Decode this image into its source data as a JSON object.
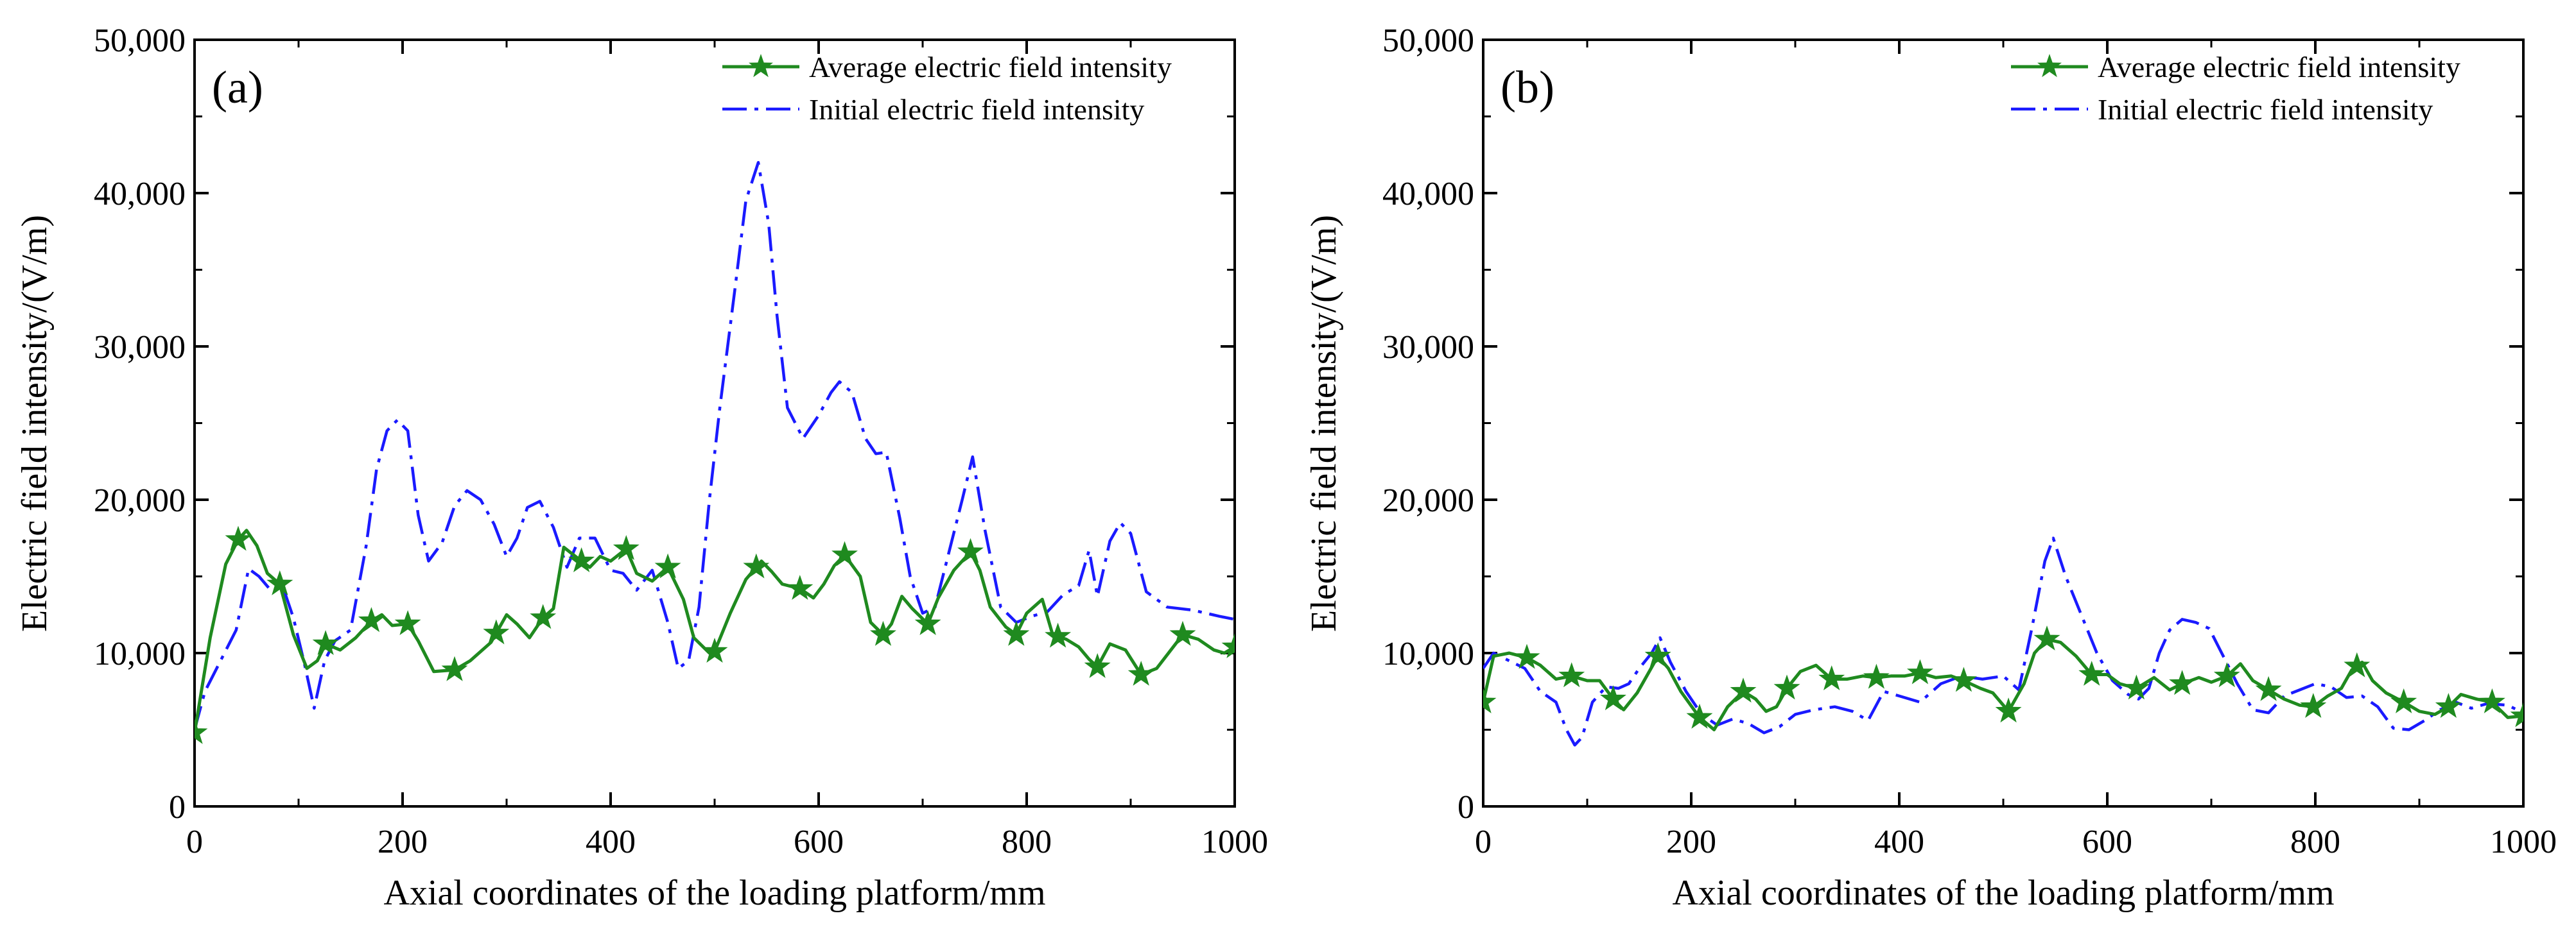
{
  "colors": {
    "average": "#1f8a1f",
    "initial": "#1a1aff",
    "axis": "#000000"
  },
  "chart_data": [
    {
      "type": "line",
      "panel_label": "(a)",
      "xlabel": "Axial coordinates of the loading platform/mm",
      "ylabel": "Electric field intensity/(V/m)",
      "xlim": [
        0,
        1000
      ],
      "ylim": [
        0,
        50000
      ],
      "x_ticks": [
        0,
        200,
        400,
        600,
        800,
        1000
      ],
      "x_tick_labels": [
        "0",
        "200",
        "400",
        "600",
        "800",
        "1000"
      ],
      "y_ticks": [
        0,
        10000,
        20000,
        30000,
        40000,
        50000
      ],
      "y_tick_labels": [
        "0",
        "10,000",
        "20,000",
        "30,000",
        "40,000",
        "50,000"
      ],
      "legend_position": "top-right",
      "series": [
        {
          "name": "Average electric field intensity",
          "style": "solid-star",
          "x": [
            0,
            15,
            30,
            42,
            50,
            60,
            70,
            82,
            95,
            108,
            118,
            126,
            140,
            155,
            170,
            180,
            190,
            205,
            215,
            230,
            250,
            265,
            285,
            300,
            310,
            322,
            335,
            345,
            355,
            372,
            380,
            390,
            400,
            415,
            425,
            440,
            455,
            470,
            480,
            495,
            500,
            515,
            530,
            545,
            555,
            565,
            582,
            595,
            605,
            615,
            625,
            640,
            650,
            662,
            670,
            680,
            690,
            705,
            715,
            730,
            746,
            755,
            765,
            780,
            790,
            800,
            815,
            825,
            838,
            850,
            860,
            868,
            880,
            895,
            910,
            925,
            950,
            965,
            980,
            990,
            1000
          ],
          "values": [
            4800,
            11000,
            15800,
            17400,
            18000,
            17000,
            15200,
            14500,
            11200,
            9000,
            9500,
            10600,
            10200,
            11000,
            12100,
            12500,
            11800,
            11900,
            10800,
            8800,
            8900,
            9500,
            10700,
            12500,
            11900,
            11000,
            12300,
            12900,
            16900,
            16000,
            15600,
            16300,
            16000,
            16800,
            15200,
            14700,
            15600,
            13500,
            11000,
            10000,
            10100,
            12600,
            14800,
            16000,
            15300,
            14500,
            14200,
            13600,
            14500,
            15700,
            16400,
            15000,
            12000,
            11200,
            11900,
            13700,
            12900,
            11900,
            13600,
            15400,
            16600,
            15400,
            13000,
            11700,
            11200,
            12600,
            13500,
            11200,
            10900,
            10400,
            9600,
            9100,
            10600,
            10200,
            8600,
            9000,
            11200,
            10900,
            10200,
            10000,
            10400
          ],
          "marker_x": [
            0,
            42,
            82,
            126,
            170,
            205,
            250,
            290,
            335,
            372,
            415,
            455,
            500,
            540,
            582,
            625,
            662,
            705,
            746,
            790,
            830,
            868,
            910,
            950,
            1000
          ]
        },
        {
          "name": "Initial electric field intensity",
          "style": "dash-dot",
          "x": [
            0,
            10,
            25,
            40,
            52,
            62,
            72,
            85,
            95,
            105,
            115,
            125,
            135,
            150,
            165,
            175,
            185,
            195,
            205,
            215,
            225,
            238,
            250,
            262,
            275,
            288,
            300,
            310,
            320,
            332,
            345,
            358,
            370,
            385,
            400,
            412,
            425,
            440,
            455,
            465,
            475,
            485,
            495,
            505,
            520,
            530,
            542,
            552,
            560,
            570,
            585,
            600,
            612,
            620,
            632,
            645,
            655,
            665,
            678,
            688,
            700,
            712,
            725,
            738,
            748,
            760,
            775,
            790,
            805,
            820,
            835,
            850,
            860,
            868,
            880,
            890,
            900,
            915,
            935,
            960,
            985,
            1000
          ],
          "values": [
            5000,
            7500,
            9500,
            11500,
            15500,
            15000,
            14200,
            14300,
            12300,
            9500,
            6400,
            9500,
            10800,
            11500,
            17000,
            22000,
            24500,
            25200,
            24500,
            19000,
            16000,
            17200,
            19600,
            20600,
            20000,
            18400,
            16300,
            17500,
            19500,
            19900,
            18200,
            15600,
            17500,
            17500,
            15400,
            15200,
            14100,
            15400,
            12000,
            9000,
            9500,
            13000,
            20000,
            26000,
            34000,
            39500,
            42000,
            38000,
            32000,
            26000,
            24000,
            25500,
            27000,
            27700,
            27000,
            24000,
            23000,
            23100,
            18800,
            15000,
            12600,
            13000,
            16500,
            20000,
            22800,
            18000,
            13000,
            12000,
            12400,
            12700,
            13800,
            14400,
            16700,
            13700,
            17300,
            18500,
            17800,
            14000,
            13000,
            12800,
            12400,
            12200
          ]
        }
      ]
    },
    {
      "type": "line",
      "panel_label": "(b)",
      "xlabel": "Axial coordinates of the loading platform/mm",
      "ylabel": "Electric field intensity/(V/m)",
      "xlim": [
        0,
        1000
      ],
      "ylim": [
        0,
        50000
      ],
      "x_ticks": [
        0,
        200,
        400,
        600,
        800,
        1000
      ],
      "x_tick_labels": [
        "0",
        "200",
        "400",
        "600",
        "800",
        "1000"
      ],
      "y_ticks": [
        0,
        10000,
        20000,
        30000,
        40000,
        50000
      ],
      "y_tick_labels": [
        "0",
        "10,000",
        "20,000",
        "30,000",
        "40,000",
        "50,000"
      ],
      "legend_position": "top-right",
      "series": [
        {
          "name": "Average electric field intensity",
          "style": "solid-star",
          "x": [
            0,
            10,
            25,
            42,
            55,
            70,
            85,
            100,
            112,
            125,
            135,
            148,
            158,
            168,
            178,
            190,
            208,
            222,
            235,
            250,
            262,
            272,
            282,
            292,
            305,
            320,
            335,
            350,
            365,
            378,
            392,
            405,
            420,
            435,
            450,
            462,
            478,
            490,
            505,
            520,
            530,
            542,
            555,
            570,
            585,
            600,
            612,
            628,
            645,
            660,
            672,
            688,
            700,
            715,
            728,
            740,
            755,
            770,
            785,
            798,
            812,
            825,
            835,
            845,
            855,
            868,
            885,
            900,
            915,
            928,
            940,
            955,
            970,
            985,
            1000
          ],
          "values": [
            6800,
            9800,
            10000,
            9700,
            9200,
            8300,
            8500,
            8200,
            8200,
            7000,
            6300,
            7400,
            8600,
            9800,
            9000,
            7500,
            5800,
            5000,
            6500,
            7500,
            7000,
            6200,
            6500,
            7700,
            8800,
            9200,
            8300,
            8300,
            8500,
            8400,
            8500,
            8500,
            8700,
            8400,
            8500,
            8200,
            7700,
            7400,
            6200,
            8000,
            10000,
            10900,
            10700,
            9800,
            8600,
            8600,
            8000,
            7700,
            8400,
            7600,
            8000,
            8400,
            8100,
            8500,
            9300,
            8200,
            7600,
            7000,
            6600,
            6500,
            7200,
            7700,
            8900,
            9400,
            8200,
            7400,
            6800,
            6200,
            6000,
            6500,
            7300,
            7000,
            6800,
            5800,
            5900
          ],
          "marker_x": [
            0,
            42,
            85,
            125,
            168,
            208,
            250,
            292,
            335,
            378,
            420,
            462,
            505,
            542,
            585,
            628,
            672,
            715,
            755,
            798,
            840,
            885,
            928,
            970,
            1000
          ]
        },
        {
          "name": "Initial electric field intensity",
          "style": "dash-dot",
          "x": [
            0,
            10,
            25,
            40,
            55,
            70,
            80,
            88,
            95,
            105,
            118,
            130,
            140,
            150,
            162,
            170,
            180,
            195,
            210,
            225,
            240,
            255,
            270,
            285,
            300,
            318,
            338,
            355,
            370,
            385,
            400,
            420,
            440,
            460,
            480,
            500,
            515,
            528,
            540,
            548,
            560,
            575,
            590,
            605,
            620,
            630,
            640,
            650,
            660,
            672,
            685,
            698,
            710,
            725,
            740,
            755,
            770,
            785,
            800,
            815,
            830,
            845,
            860,
            875,
            890,
            905,
            920,
            935,
            950,
            965,
            985,
            1000
          ],
          "values": [
            9000,
            10000,
            9500,
            9000,
            7500,
            6800,
            5000,
            4000,
            4500,
            6800,
            7800,
            7700,
            8000,
            9000,
            10000,
            11000,
            9400,
            7500,
            6000,
            5300,
            5700,
            5400,
            4800,
            5200,
            6000,
            6300,
            6500,
            6200,
            5600,
            7500,
            7200,
            6800,
            8000,
            8500,
            8300,
            8500,
            7600,
            11800,
            16000,
            17500,
            15000,
            12500,
            10000,
            8200,
            7300,
            7000,
            7700,
            10000,
            11500,
            12200,
            12000,
            11600,
            10000,
            8000,
            6300,
            6100,
            7200,
            7600,
            8000,
            7800,
            7100,
            7200,
            6500,
            5100,
            5000,
            5600,
            6300,
            6800,
            6400,
            6700,
            6600,
            6100
          ]
        }
      ]
    }
  ]
}
